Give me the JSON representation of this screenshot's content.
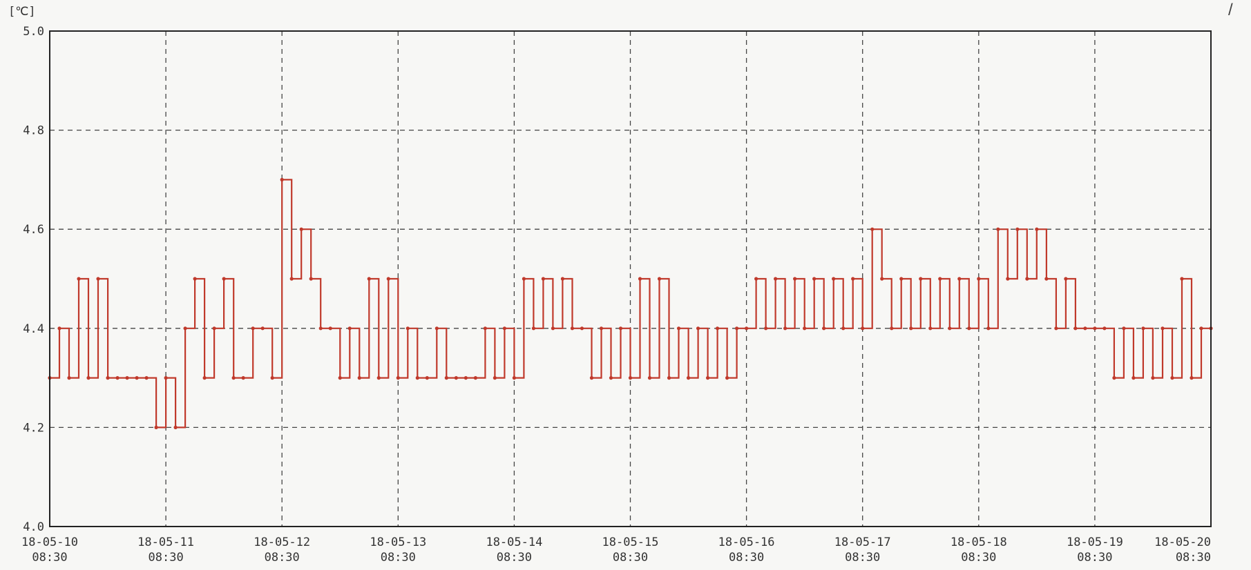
{
  "chart_data": {
    "type": "line",
    "ylabel": "[℃]",
    "xlabel": "",
    "ylim": [
      4.0,
      5.0
    ],
    "y_ticks": [
      "5.0",
      "4.8",
      "4.6",
      "4.4",
      "4.2",
      "4.0"
    ],
    "x_ticks": [
      {
        "date": "18-05-10",
        "time": "08:30"
      },
      {
        "date": "18-05-11",
        "time": "08:30"
      },
      {
        "date": "18-05-12",
        "time": "08:30"
      },
      {
        "date": "18-05-13",
        "time": "08:30"
      },
      {
        "date": "18-05-14",
        "time": "08:30"
      },
      {
        "date": "18-05-15",
        "time": "08:30"
      },
      {
        "date": "18-05-16",
        "time": "08:30"
      },
      {
        "date": "18-05-17",
        "time": "08:30"
      },
      {
        "date": "18-05-18",
        "time": "08:30"
      },
      {
        "date": "18-05-19",
        "time": "08:30"
      },
      {
        "date": "18-05-20",
        "time": "08:30"
      }
    ],
    "grid": true,
    "series": [
      {
        "color": "#c0392b",
        "x": [
          "18-05-10 08:30",
          "18-05-10 10:30",
          "18-05-10 12:30",
          "18-05-10 14:30",
          "18-05-10 16:30",
          "18-05-10 18:30",
          "18-05-10 20:30",
          "18-05-10 22:30",
          "18-05-11 00:30",
          "18-05-11 02:30",
          "18-05-11 04:30",
          "18-05-11 06:30",
          "18-05-11 08:30",
          "18-05-11 10:30",
          "18-05-11 12:30",
          "18-05-11 14:30",
          "18-05-11 16:30",
          "18-05-11 18:30",
          "18-05-11 20:30",
          "18-05-11 22:30",
          "18-05-12 00:30",
          "18-05-12 02:30",
          "18-05-12 04:30",
          "18-05-12 06:30",
          "18-05-12 08:30",
          "18-05-12 10:30",
          "18-05-12 12:30",
          "18-05-12 14:30",
          "18-05-12 16:30",
          "18-05-12 18:30",
          "18-05-12 20:30",
          "18-05-12 22:30",
          "18-05-13 00:30",
          "18-05-13 02:30",
          "18-05-13 04:30",
          "18-05-13 06:30",
          "18-05-13 08:30",
          "18-05-13 10:30",
          "18-05-13 12:30",
          "18-05-13 14:30",
          "18-05-13 16:30",
          "18-05-13 18:30",
          "18-05-13 20:30",
          "18-05-13 22:30",
          "18-05-14 00:30",
          "18-05-14 02:30",
          "18-05-14 04:30",
          "18-05-14 06:30",
          "18-05-14 08:30",
          "18-05-14 10:30",
          "18-05-14 12:30",
          "18-05-14 14:30",
          "18-05-14 16:30",
          "18-05-14 18:30",
          "18-05-14 20:30",
          "18-05-14 22:30",
          "18-05-15 00:30",
          "18-05-15 02:30",
          "18-05-15 04:30",
          "18-05-15 06:30",
          "18-05-15 08:30",
          "18-05-15 10:30",
          "18-05-15 12:30",
          "18-05-15 14:30",
          "18-05-15 16:30",
          "18-05-15 18:30",
          "18-05-15 20:30",
          "18-05-15 22:30",
          "18-05-16 00:30",
          "18-05-16 02:30",
          "18-05-16 04:30",
          "18-05-16 06:30",
          "18-05-16 08:30",
          "18-05-16 10:30",
          "18-05-16 12:30",
          "18-05-16 14:30",
          "18-05-16 16:30",
          "18-05-16 18:30",
          "18-05-16 20:30",
          "18-05-16 22:30",
          "18-05-17 00:30",
          "18-05-17 02:30",
          "18-05-17 04:30",
          "18-05-17 06:30",
          "18-05-17 08:30",
          "18-05-17 10:30",
          "18-05-17 12:30",
          "18-05-17 14:30",
          "18-05-17 16:30",
          "18-05-17 18:30",
          "18-05-17 20:30",
          "18-05-17 22:30",
          "18-05-18 00:30",
          "18-05-18 02:30",
          "18-05-18 04:30",
          "18-05-18 06:30",
          "18-05-18 08:30",
          "18-05-18 10:30",
          "18-05-18 12:30",
          "18-05-18 14:30",
          "18-05-18 16:30",
          "18-05-18 18:30",
          "18-05-18 20:30",
          "18-05-18 22:30",
          "18-05-19 00:30",
          "18-05-19 02:30",
          "18-05-19 04:30",
          "18-05-19 06:30",
          "18-05-19 08:30",
          "18-05-19 10:30",
          "18-05-19 12:30",
          "18-05-19 14:30",
          "18-05-19 16:30",
          "18-05-19 18:30",
          "18-05-19 20:30",
          "18-05-19 22:30",
          "18-05-20 00:30",
          "18-05-20 02:30",
          "18-05-20 04:30",
          "18-05-20 06:30",
          "18-05-20 08:30"
        ],
        "y": [
          4.3,
          4.4,
          4.3,
          4.5,
          4.3,
          4.5,
          4.3,
          4.3,
          4.3,
          4.3,
          4.3,
          4.2,
          4.3,
          4.2,
          4.4,
          4.5,
          4.3,
          4.4,
          4.5,
          4.3,
          4.3,
          4.4,
          4.4,
          4.3,
          4.7,
          4.5,
          4.6,
          4.5,
          4.4,
          4.4,
          4.3,
          4.4,
          4.3,
          4.5,
          4.3,
          4.5,
          4.3,
          4.4,
          4.3,
          4.3,
          4.4,
          4.3,
          4.3,
          4.3,
          4.3,
          4.4,
          4.3,
          4.4,
          4.3,
          4.5,
          4.4,
          4.5,
          4.4,
          4.5,
          4.4,
          4.4,
          4.3,
          4.4,
          4.3,
          4.4,
          4.3,
          4.5,
          4.3,
          4.5,
          4.3,
          4.4,
          4.3,
          4.4,
          4.3,
          4.4,
          4.3,
          4.4,
          4.4,
          4.5,
          4.4,
          4.5,
          4.4,
          4.5,
          4.4,
          4.5,
          4.4,
          4.5,
          4.4,
          4.5,
          4.4,
          4.6,
          4.5,
          4.4,
          4.5,
          4.4,
          4.5,
          4.4,
          4.5,
          4.4,
          4.5,
          4.4,
          4.5,
          4.4,
          4.6,
          4.5,
          4.6,
          4.5,
          4.6,
          4.5,
          4.4,
          4.5,
          4.4,
          4.4,
          4.4,
          4.4,
          4.3,
          4.4,
          4.3,
          4.4,
          4.3,
          4.4,
          4.3,
          4.5,
          4.3,
          4.4,
          4.4
        ]
      }
    ]
  },
  "decor": {
    "corner_mark": "/"
  }
}
